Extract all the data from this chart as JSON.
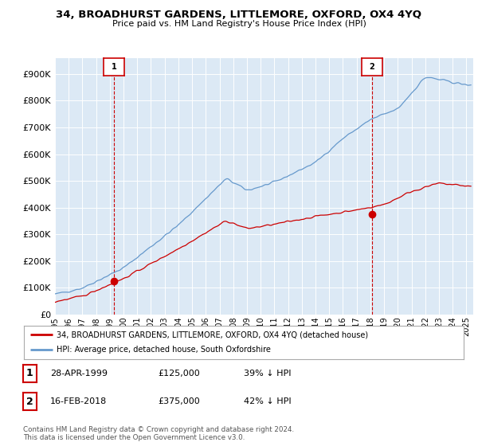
{
  "title": "34, BROADHURST GARDENS, LITTLEMORE, OXFORD, OX4 4YQ",
  "subtitle": "Price paid vs. HM Land Registry's House Price Index (HPI)",
  "yticks": [
    0,
    100000,
    200000,
    300000,
    400000,
    500000,
    600000,
    700000,
    800000,
    900000
  ],
  "ylim": [
    0,
    960000
  ],
  "xlim_start": 1995.0,
  "xlim_end": 2025.5,
  "red_line_color": "#cc0000",
  "blue_line_color": "#6699cc",
  "plot_bg_color": "#dce9f5",
  "marker1_x": 1999.32,
  "marker1_y": 125000,
  "marker2_x": 2018.12,
  "marker2_y": 375000,
  "legend_label_red": "34, BROADHURST GARDENS, LITTLEMORE, OXFORD, OX4 4YQ (detached house)",
  "legend_label_blue": "HPI: Average price, detached house, South Oxfordshire",
  "table_row1": [
    "1",
    "28-APR-1999",
    "£125,000",
    "39% ↓ HPI"
  ],
  "table_row2": [
    "2",
    "16-FEB-2018",
    "£375,000",
    "42% ↓ HPI"
  ],
  "footnote": "Contains HM Land Registry data © Crown copyright and database right 2024.\nThis data is licensed under the Open Government Licence v3.0.",
  "bg_color": "#ffffff"
}
